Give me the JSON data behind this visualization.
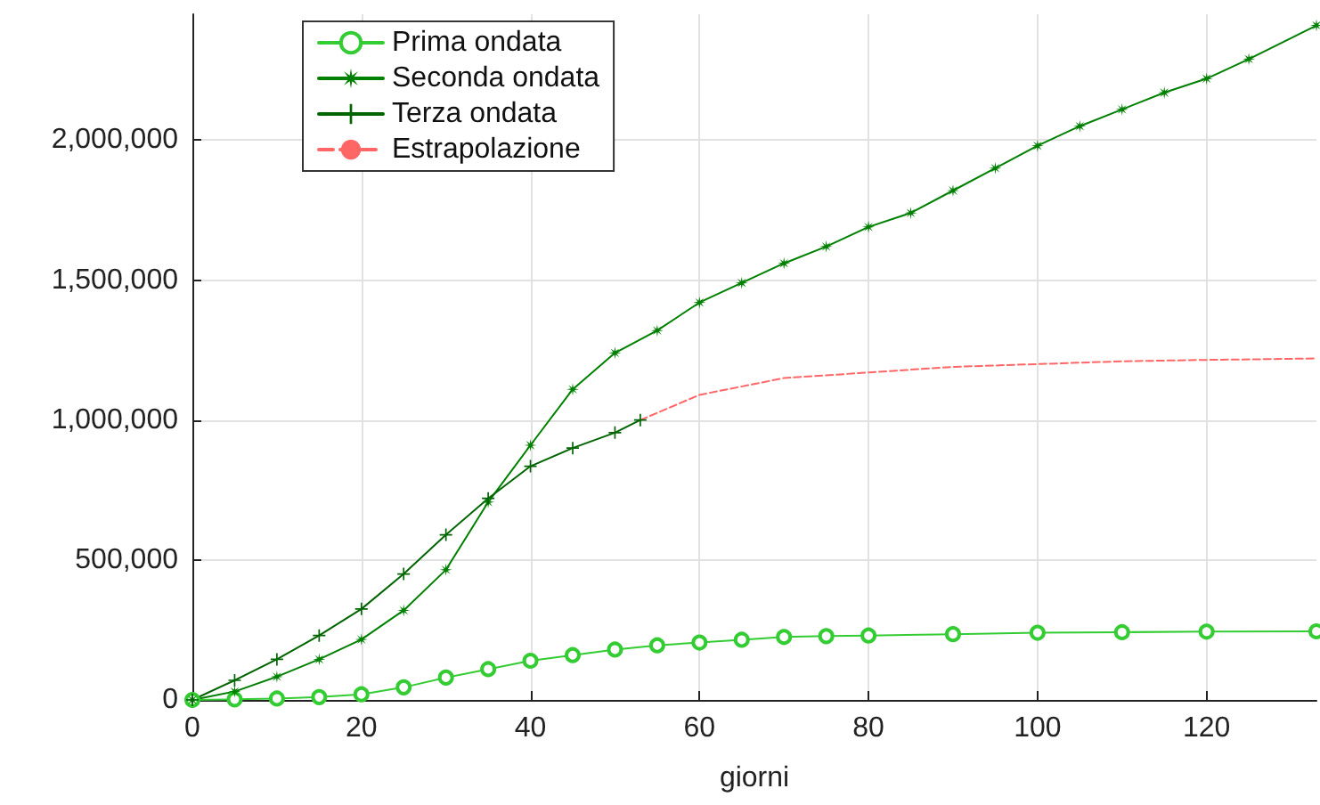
{
  "chart_data": {
    "type": "line",
    "xlabel": "giorni",
    "xlim": [
      0,
      133
    ],
    "xticks": [
      0,
      20,
      40,
      60,
      80,
      100,
      120
    ],
    "ylim": [
      0,
      2450000
    ],
    "yticks": [
      {
        "value": 0,
        "label": "0"
      },
      {
        "value": 500000,
        "label": "500,000"
      },
      {
        "value": 1000000,
        "label": "1,000,000"
      },
      {
        "value": 1500000,
        "label": "1,500,000"
      },
      {
        "value": 2000000,
        "label": "2,000,000"
      }
    ],
    "grid": true,
    "legend": "top left",
    "series": [
      {
        "name": "Prima ondata",
        "color": "#33cc33",
        "marker": "circle",
        "line_style": "solid",
        "x": [
          0,
          5,
          10,
          15,
          20,
          25,
          30,
          35,
          40,
          45,
          50,
          55,
          60,
          65,
          70,
          75,
          80,
          90,
          100,
          110,
          120,
          133
        ],
        "values": [
          0,
          2000,
          5000,
          10000,
          20000,
          45000,
          80000,
          110000,
          140000,
          160000,
          180000,
          195000,
          205000,
          215000,
          225000,
          228000,
          230000,
          235000,
          240000,
          242000,
          244000,
          245000
        ]
      },
      {
        "name": "Seconda ondata",
        "color": "#008000",
        "marker": "star",
        "line_style": "solid",
        "x": [
          0,
          5,
          10,
          15,
          20,
          25,
          30,
          35,
          40,
          45,
          50,
          55,
          60,
          65,
          70,
          75,
          80,
          85,
          90,
          95,
          100,
          105,
          110,
          115,
          120,
          125,
          133
        ],
        "values": [
          0,
          30000,
          83000,
          145000,
          216000,
          320000,
          465000,
          707000,
          910000,
          1110000,
          1240000,
          1320000,
          1420000,
          1490000,
          1560000,
          1620000,
          1690000,
          1740000,
          1820000,
          1900000,
          1980000,
          2050000,
          2110000,
          2170000,
          2220000,
          2290000,
          2410000
        ]
      },
      {
        "name": "Terza ondata",
        "color": "#006400",
        "marker": "cross",
        "line_style": "solid",
        "x": [
          0,
          5,
          10,
          15,
          20,
          25,
          30,
          35,
          40,
          45,
          50,
          53
        ],
        "values": [
          0,
          70000,
          145000,
          230000,
          325000,
          450000,
          590000,
          720000,
          835000,
          900000,
          955000,
          1000000
        ]
      },
      {
        "name": "Estrapolazione",
        "color": "#ff6666",
        "marker": "none",
        "line_style": "dashed",
        "x": [
          53,
          60,
          70,
          80,
          90,
          100,
          110,
          120,
          133
        ],
        "values": [
          1000000,
          1090000,
          1150000,
          1170000,
          1190000,
          1200000,
          1210000,
          1215000,
          1220000
        ]
      }
    ]
  }
}
